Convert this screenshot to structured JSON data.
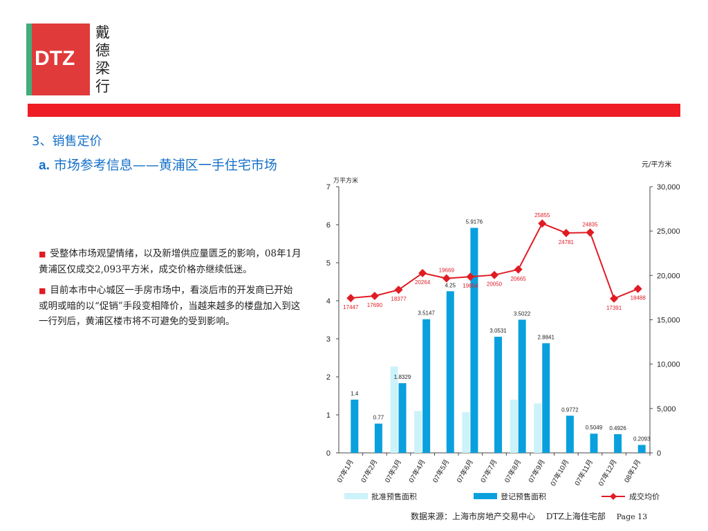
{
  "logo": {
    "brand": "DTZ",
    "cn": [
      "戴",
      "德",
      "梁",
      "行"
    ]
  },
  "heading": {
    "section": "3、销售定价",
    "sub_prefix": "a.",
    "sub_text": "市场参考信息——黄浦区一手住宅市场"
  },
  "bullets": [
    "受整体市场观望情绪，以及新增供应量匮乏的影响，08年1月黄浦区仅成交2,093平方米，成交价格亦继续低迷。",
    "目前本市中心城区一手房市场中，看淡后市的开发商已开始或明或暗的以“促销”手段变相降价，当越来越多的楼盘加入到这一行列后，黄浦区楼市将不可避免的受到影响。"
  ],
  "colors": {
    "approved": "#ccf2fa",
    "registered": "#0aa0dd",
    "price": "#e01b24",
    "accent": "#ee1c25",
    "heading": "#1570c8"
  },
  "chart_data": {
    "type": "bar",
    "categories": [
      "07年1月",
      "07年2月",
      "07年3月",
      "07年4月",
      "07年5月",
      "07年6月",
      "07年7月",
      "07年8月",
      "07年9月",
      "07年10月",
      "07年11月",
      "07年12月",
      "08年1月"
    ],
    "ylabel_left": "万平方米",
    "ylabel_right": "元/平方米",
    "ylim_left": [
      0,
      7
    ],
    "ylim_right": [
      0,
      30000
    ],
    "yticks_left": [
      "0",
      "1",
      "2",
      "3",
      "4",
      "5",
      "6",
      "7"
    ],
    "yticks_right": [
      "0",
      "5,000",
      "10,000",
      "15,000",
      "20,000",
      "25,000",
      "30,000"
    ],
    "series": [
      {
        "name": "批准预售面积",
        "type": "bar",
        "values": [
          0,
          0,
          2.27,
          1.1,
          0,
          1.07,
          0,
          1.4,
          1.3,
          0,
          0,
          0,
          0
        ]
      },
      {
        "name": "登记预售面积",
        "type": "bar",
        "values": [
          1.4,
          0.77,
          1.8329,
          3.5147,
          4.25,
          5.9176,
          3.0531,
          3.5022,
          2.8841,
          0.9772,
          0.5049,
          0.4926,
          0.2093
        ],
        "labels": [
          "1.4",
          "0.77",
          "1.8329",
          "3.5147",
          "4.25",
          "5.9176",
          "3.0531",
          "3.5022",
          "2.8841",
          "0.9772",
          "0.5049",
          "0.4926",
          "0.2093"
        ]
      },
      {
        "name": "成交均价",
        "type": "line",
        "axis": "right",
        "values": [
          17447,
          17690,
          18377,
          20264,
          19669,
          19854,
          20050,
          20665,
          25855,
          24781,
          24835,
          17391,
          18488
        ],
        "labels": [
          "17447",
          "17690",
          "18377",
          "20264",
          "19669",
          "19854",
          "20050",
          "20665",
          "25855",
          "24781",
          "24835",
          "17391",
          "18488"
        ]
      }
    ],
    "legend_position": "bottom"
  },
  "footer": {
    "source": "数据来源：上海市房地产交易中心　 DTZ上海住宅部",
    "page": "Page 13"
  }
}
